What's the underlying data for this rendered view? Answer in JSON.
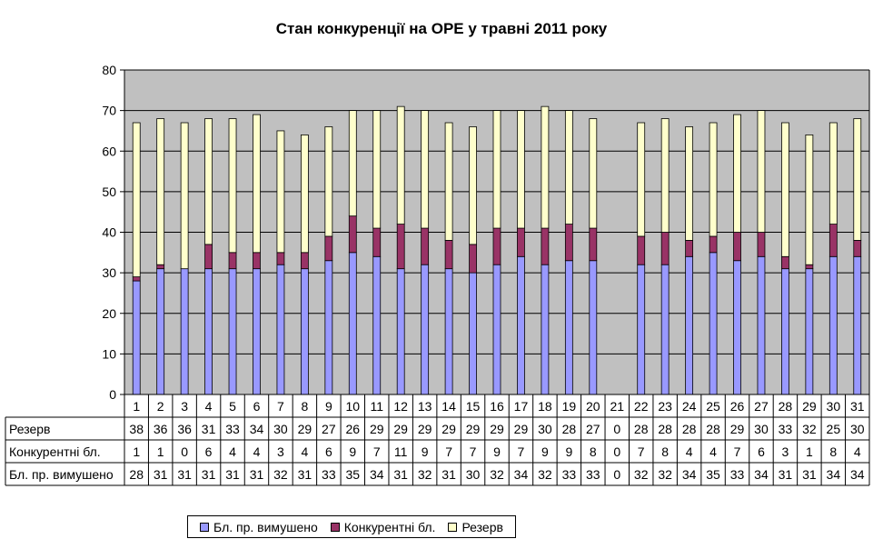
{
  "chart_data": {
    "type": "bar",
    "stacked": true,
    "title": "Стан конкуренції на ОРЕ  у травні 2011 року",
    "categories": [
      "1",
      "2",
      "3",
      "4",
      "5",
      "6",
      "7",
      "8",
      "9",
      "10",
      "11",
      "12",
      "13",
      "14",
      "15",
      "16",
      "17",
      "18",
      "19",
      "20",
      "21",
      "22",
      "23",
      "24",
      "25",
      "26",
      "27",
      "28",
      "29",
      "30",
      "31"
    ],
    "ylim": [
      0,
      80
    ],
    "yticks": [
      "0",
      "10",
      "20",
      "30",
      "40",
      "50",
      "60",
      "70",
      "80"
    ],
    "grid": true,
    "legend_position": "bottom",
    "series": [
      {
        "name": "Бл. пр. вимушено",
        "color": "#9999ff",
        "values": [
          28,
          31,
          31,
          31,
          31,
          31,
          32,
          31,
          33,
          35,
          34,
          31,
          32,
          31,
          30,
          32,
          34,
          32,
          33,
          33,
          0,
          32,
          32,
          34,
          35,
          33,
          34,
          31,
          31,
          34,
          34
        ],
        "labels": [
          "28",
          "31",
          "31",
          "31",
          "31",
          "31",
          "32",
          "31",
          "33",
          "35",
          "34",
          "31",
          "32",
          "31",
          "30",
          "32",
          "34",
          "32",
          "33",
          "33",
          "0",
          "32",
          "32",
          "34",
          "35",
          "33",
          "34",
          "31",
          "31",
          "34",
          "34"
        ]
      },
      {
        "name": "Конкурентні бл.",
        "color": "#993366",
        "values": [
          1,
          1,
          0,
          6,
          4,
          4,
          3,
          4,
          6,
          9,
          7,
          11,
          9,
          7,
          7,
          9,
          7,
          9,
          9,
          8,
          0,
          7,
          8,
          4,
          4,
          7,
          6,
          3,
          1,
          8,
          4
        ],
        "labels": [
          "1",
          "1",
          "0",
          "6",
          "4",
          "4",
          "3",
          "4",
          "6",
          "9",
          "7",
          "11",
          "9",
          "7",
          "7",
          "9",
          "7",
          "9",
          "9",
          "8",
          "0",
          "7",
          "8",
          "4",
          "4",
          "7",
          "6",
          "3",
          "1",
          "8",
          "4"
        ]
      },
      {
        "name": "Резерв",
        "color": "#ffffcc",
        "values": [
          38,
          36,
          36,
          31,
          33,
          34,
          30,
          29,
          27,
          26,
          29,
          29,
          29,
          29,
          29,
          29,
          29,
          30,
          28,
          27,
          0,
          28,
          28,
          28,
          28,
          29,
          30,
          33,
          32,
          25,
          30
        ],
        "labels": [
          "38",
          "36",
          "36",
          "31",
          "33",
          "34",
          "30",
          "29",
          "27",
          "26",
          "29",
          "29",
          "29",
          "29",
          "29",
          "29",
          "29",
          "30",
          "28",
          "27",
          "0",
          "28",
          "28",
          "28",
          "28",
          "29",
          "30",
          "33",
          "32",
          "25",
          "30"
        ]
      }
    ],
    "table_rows": [
      "Резерв",
      "Конкурентні бл.",
      "Бл. пр. вимушено"
    ],
    "colors": {
      "plot_bg": "#c0c0c0",
      "frame": "#808080"
    }
  }
}
